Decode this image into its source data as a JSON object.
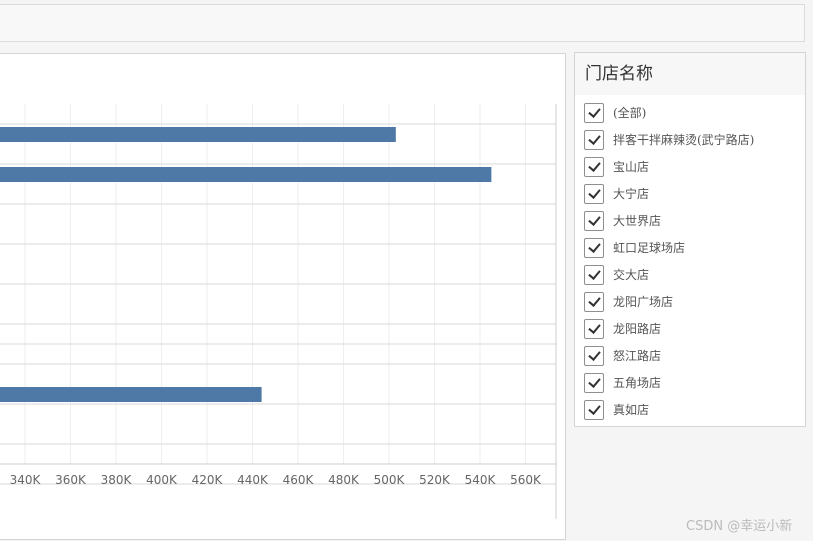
{
  "filter": {
    "title": "门店名称",
    "items": [
      {
        "label": "(全部)",
        "checked": true
      },
      {
        "label": "拌客干拌麻辣烫(武宁路店)",
        "checked": true
      },
      {
        "label": "宝山店",
        "checked": true
      },
      {
        "label": "大宁店",
        "checked": true
      },
      {
        "label": "大世界店",
        "checked": true
      },
      {
        "label": "虹口足球场店",
        "checked": true
      },
      {
        "label": "交大店",
        "checked": true
      },
      {
        "label": "龙阳广场店",
        "checked": true
      },
      {
        "label": "龙阳路店",
        "checked": true
      },
      {
        "label": "怒江路店",
        "checked": true
      },
      {
        "label": "五角场店",
        "checked": true
      },
      {
        "label": "真如店",
        "checked": true
      }
    ]
  },
  "watermark": "CSDN @幸运小新",
  "chart_data": {
    "type": "bar",
    "orientation": "horizontal",
    "x_ticks": [
      "340K",
      "360K",
      "380K",
      "400K",
      "420K",
      "440K",
      "460K",
      "480K",
      "500K",
      "520K",
      "540K",
      "560K"
    ],
    "xlim_visible": [
      325000,
      570000
    ],
    "bars": [
      {
        "row": 0,
        "value": 503000
      },
      {
        "row": 1,
        "value": 545000
      },
      {
        "row": 7,
        "value": 444000
      }
    ],
    "bar_color": "#4e79a7"
  }
}
